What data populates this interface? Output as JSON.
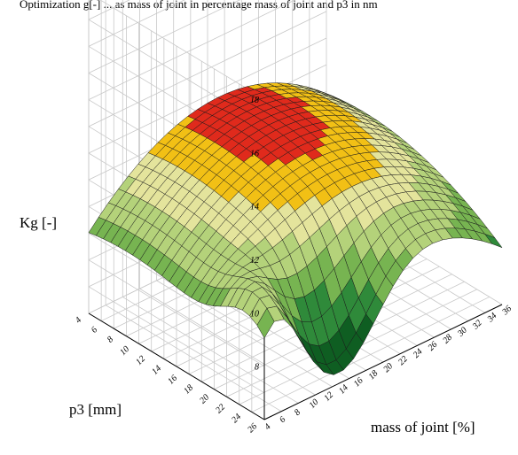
{
  "caption": "Optimization g[-] ... as mass of joint in percentage mass of joint and p3 in nm",
  "chart_data": {
    "type": "surface3d",
    "zlabel": "Kg [-]",
    "ylabel": "p3 [mm]",
    "xlabel": "mass of joint [%]",
    "zlim": [
      6,
      18
    ],
    "z_ticks": [
      "8",
      "10",
      "12",
      "14",
      "16",
      "18"
    ],
    "y_ticks": [
      "4",
      "6",
      "8",
      "10",
      "12",
      "14",
      "16",
      "18",
      "20",
      "22",
      "24",
      "26"
    ],
    "x_ticks": [
      "4",
      "6",
      "8",
      "10",
      "12",
      "14",
      "16",
      "18",
      "20",
      "22",
      "24",
      "26",
      "28",
      "30",
      "32",
      "34",
      "36"
    ],
    "grid": true,
    "color_bands": [
      {
        "max": 7.5,
        "color": "#0f5e22"
      },
      {
        "max": 8.5,
        "color": "#2f8a3a"
      },
      {
        "max": 9.5,
        "color": "#77b451"
      },
      {
        "max": 10.3,
        "color": "#b4d27a"
      },
      {
        "max": 11.0,
        "color": "#e4e49c"
      },
      {
        "max": 11.6,
        "color": "#f2c015"
      },
      {
        "max": 12.2,
        "color": "#e02a1c"
      },
      {
        "max": 99,
        "color": "#8a0d0d"
      }
    ]
  }
}
